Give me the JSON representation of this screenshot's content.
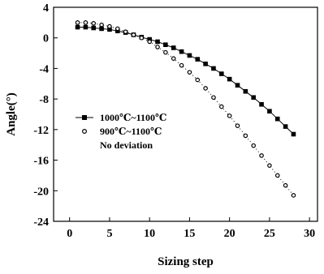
{
  "chart_data": {
    "type": "scatter",
    "title": "",
    "xlabel": "Sizing step",
    "ylabel": "Angle(°)",
    "xlim": [
      -2,
      31
    ],
    "ylim": [
      -24,
      4
    ],
    "xticks": [
      0,
      5,
      10,
      15,
      20,
      25,
      30
    ],
    "yticks": [
      4,
      0,
      -4,
      -8,
      -12,
      -16,
      -20,
      -24
    ],
    "legend_position": "left-middle",
    "series": [
      {
        "name": "1000℃~1100℃",
        "marker": "filled-square",
        "line": "solid",
        "x": [
          1,
          2,
          3,
          4,
          5,
          6,
          7,
          8,
          9,
          10,
          11,
          12,
          13,
          14,
          15,
          16,
          17,
          18,
          19,
          20,
          21,
          22,
          23,
          24,
          25,
          26,
          27,
          28
        ],
        "y": [
          1.4,
          1.4,
          1.3,
          1.2,
          1.1,
          0.9,
          0.7,
          0.4,
          0.1,
          -0.2,
          -0.5,
          -0.9,
          -1.3,
          -1.8,
          -2.3,
          -2.8,
          -3.4,
          -4.0,
          -4.7,
          -5.4,
          -6.2,
          -7.0,
          -7.8,
          -8.7,
          -9.6,
          -10.6,
          -11.6,
          -12.6
        ]
      },
      {
        "name": "900℃~1100℃",
        "marker": "open-circle",
        "line": "dotted",
        "x": [
          1,
          2,
          3,
          4,
          5,
          6,
          7,
          8,
          9,
          10,
          11,
          12,
          13,
          14,
          15,
          16,
          17,
          18,
          19,
          20,
          21,
          22,
          23,
          24,
          25,
          26,
          27,
          28
        ],
        "y": [
          2.0,
          2.0,
          1.9,
          1.7,
          1.5,
          1.2,
          0.8,
          0.4,
          0.0,
          -0.5,
          -1.2,
          -1.9,
          -2.7,
          -3.6,
          -4.5,
          -5.5,
          -6.6,
          -7.8,
          -9.0,
          -10.2,
          -11.5,
          -12.8,
          -14.1,
          -15.4,
          -16.7,
          -18.0,
          -19.3,
          -20.6
        ]
      },
      {
        "name": "No deviation",
        "marker": "none",
        "line": "none",
        "x": [],
        "y": []
      }
    ]
  },
  "colors": {
    "axis": "#000000",
    "series": "#000000"
  }
}
